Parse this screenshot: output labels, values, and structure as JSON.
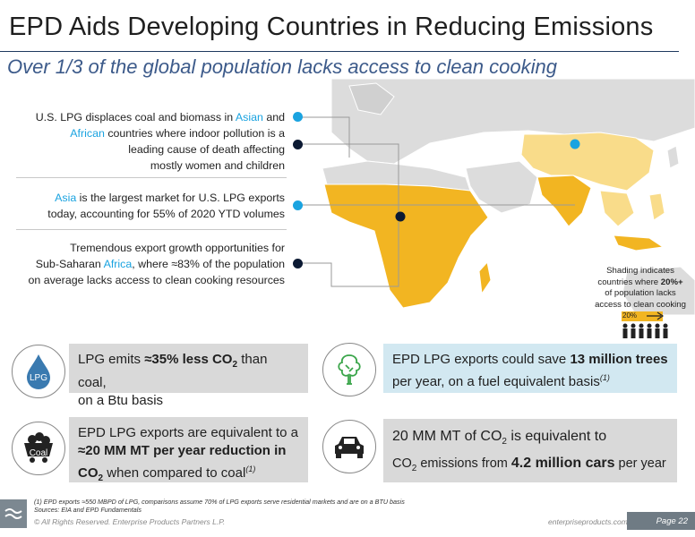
{
  "header": {
    "title": "EPD Aids Developing Countries in Reducing Emissions",
    "subtitle": "Over 1/3 of the global population lacks access to clean cooking"
  },
  "callouts": [
    {
      "line1_a": "U.S. LPG displaces coal and biomass in ",
      "line1_hl": "Asian",
      "line1_b": " and",
      "line2_hl": "African",
      "line2_b": " countries where indoor pollution is a",
      "line3": "leading cause of death affecting",
      "line4": "mostly women and children"
    },
    {
      "line1_hl": "Asia",
      "line1_b": " is the largest market for U.S. LPG exports",
      "line2_a": "today, accounting for ",
      "line2_pct": "55%",
      "line2_b": " of 2020 YTD volumes"
    },
    {
      "line1": "Tremendous export growth opportunities for",
      "line2_a": "Sub-Saharan ",
      "line2_hl": "Africa",
      "line2_b": ", where ≈83% of the population",
      "line3": "on average lacks access to clean cooking resources"
    }
  ],
  "shading_note": {
    "line1": "Shading indicates",
    "line2_a": "countries where ",
    "line2_b": "20%+",
    "line3": "of population lacks",
    "line4": "access to clean cooking",
    "bar_label": "20%"
  },
  "facts": {
    "lpg": {
      "icon_label": "LPG",
      "a": "LPG emits ",
      "bold": "≈35% less CO",
      "bold_sub": "2",
      "b": " than coal,",
      "line2": "on a Btu basis"
    },
    "trees": {
      "a": "EPD LPG exports could save ",
      "bold": "13 million trees",
      "line2": "per year, on a fuel equivalent basis",
      "note": "(1)"
    },
    "coal": {
      "icon_label": "Coal",
      "line1": "EPD LPG exports are equivalent to a",
      "bold": "≈20 MM MT per year reduction in",
      "bold2": "CO",
      "bold2_sub": "2",
      "b": " when compared to coal",
      "note": "(1)"
    },
    "cars": {
      "a": "20 MM MT of CO",
      "a_sub": "2",
      "a2": " is equivalent to",
      "b": "CO",
      "b_sub": "2",
      "b2": " emissions from ",
      "bold": "4.2 million cars",
      "b3": " per year"
    }
  },
  "footer": {
    "note1": "(1)  EPD exports ≈550 MBPD of LPG, comparisons assume 70% of LPG exports serve residential markets and are on a BTU basis",
    "note2": "Sources:  EIA and EPD Fundamentals",
    "copyright": "© All Rights Reserved. Enterprise Products Partners L.P.",
    "website": "enterpriseproducts.com",
    "page": "Page 22"
  },
  "colors": {
    "accent_blue": "#1aa3e0",
    "navy": "#0c1a33",
    "shading_dark": "#f2b522",
    "shading_light": "#f9dc8a",
    "box_blue": "#d2e8f1",
    "box_grey": "#d9d9d9"
  }
}
